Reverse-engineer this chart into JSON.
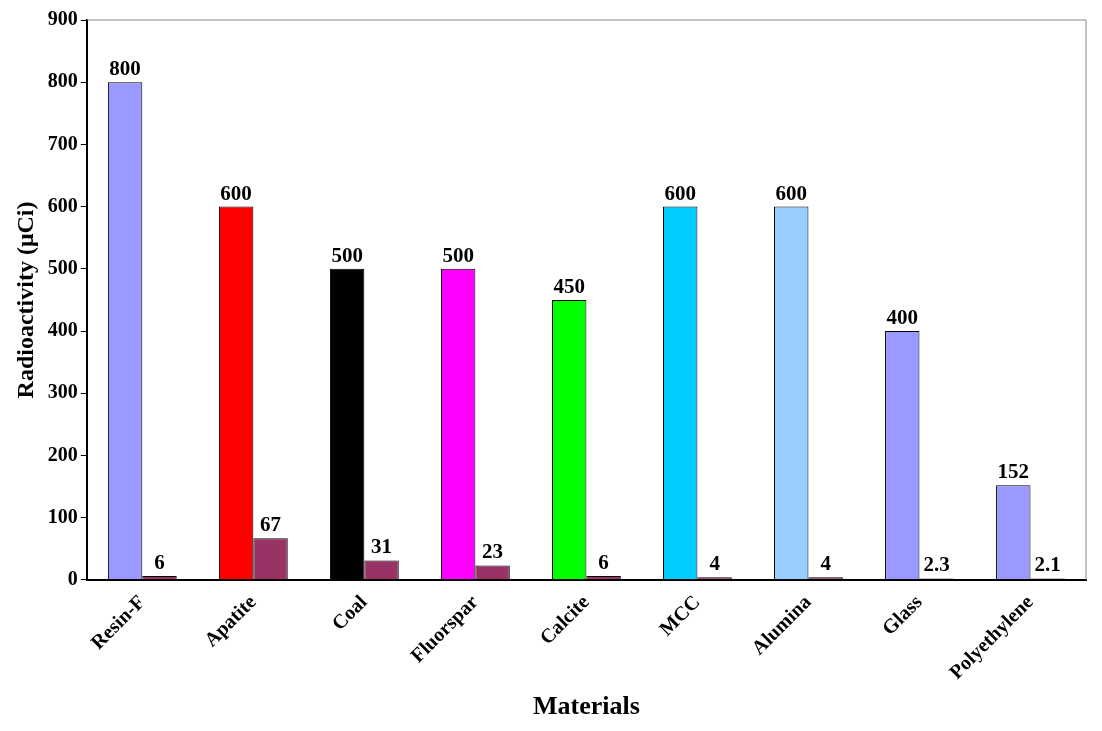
{
  "chart_data": {
    "type": "bar",
    "xlabel": "Materials",
    "ylabel": "Radioactivity (μCi)",
    "categories": [
      "Resin-F",
      "Apatite",
      "Coal",
      "Fluorspar",
      "Calcite",
      "MCC",
      "Alumina",
      "Glass",
      "Polyethylene"
    ],
    "series": [
      {
        "colors": [
          "#9999ff",
          "#ff0000",
          "#000000",
          "#ff00ff",
          "#00ff00",
          "#00ccff",
          "#99ccff",
          "#9999ff",
          "#9999ff"
        ],
        "values": [
          800,
          600,
          500,
          500,
          450,
          600,
          600,
          400,
          152
        ]
      },
      {
        "color": "#993366",
        "values": [
          6,
          67,
          31,
          23,
          6,
          4,
          4,
          2.3,
          2.1
        ]
      }
    ],
    "ylim": [
      0,
      900
    ],
    "yticks": [
      0,
      100,
      200,
      300,
      400,
      500,
      600,
      700,
      800,
      900
    ],
    "grid": false,
    "legend": false,
    "data_labels": true
  }
}
